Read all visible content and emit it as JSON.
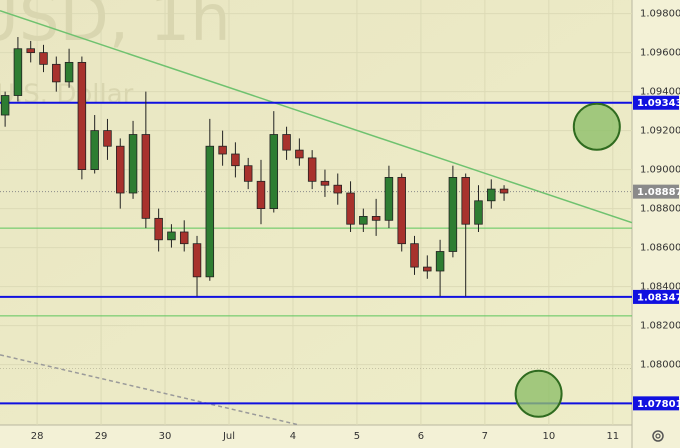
{
  "chart_data": {
    "type": "candlestick",
    "watermark": "USD, 1h",
    "watermark_subtitle": "U.S. Dollar",
    "x": [
      -0.5,
      -0.3,
      -0.1,
      0.1,
      0.3,
      0.5,
      0.7,
      0.9,
      1.1,
      1.3,
      1.5,
      1.7,
      1.9,
      2.1,
      2.3,
      2.5,
      2.7,
      2.9,
      3.1,
      3.3,
      3.5,
      3.7,
      3.9,
      4.1,
      4.3,
      4.5,
      4.7,
      4.9,
      5.1,
      5.3,
      5.5,
      5.7,
      5.9,
      6.1,
      6.3,
      6.5,
      6.7,
      6.9,
      7.1,
      7.3
    ],
    "open": [
      1.0928,
      1.0938,
      1.0962,
      1.096,
      1.0954,
      1.0945,
      1.0955,
      1.09,
      1.092,
      1.0912,
      1.0888,
      1.0918,
      1.0875,
      1.0864,
      1.0868,
      1.0862,
      1.0845,
      1.0912,
      1.0908,
      1.0902,
      1.0894,
      1.088,
      1.0918,
      1.091,
      1.0906,
      1.0894,
      1.0892,
      1.0888,
      1.0872,
      1.0876,
      1.0874,
      1.0896,
      1.0862,
      1.085,
      1.0848,
      1.0858,
      1.0896,
      1.0872,
      1.0884,
      1.089
    ],
    "high": [
      1.094,
      1.0968,
      1.0966,
      1.0964,
      1.0958,
      1.0962,
      1.0958,
      1.0928,
      1.0926,
      1.0916,
      1.0925,
      1.094,
      1.088,
      1.0872,
      1.0874,
      1.0866,
      1.0926,
      1.092,
      1.0914,
      1.0906,
      1.0905,
      1.093,
      1.0922,
      1.0916,
      1.091,
      1.09,
      1.0898,
      1.0894,
      1.088,
      1.0885,
      1.0902,
      1.0898,
      1.0866,
      1.0856,
      1.0864,
      1.0902,
      1.0898,
      1.0892,
      1.0895,
      1.0892
    ],
    "low": [
      1.0922,
      1.0935,
      1.0955,
      1.095,
      1.094,
      1.0942,
      1.0895,
      1.0898,
      1.0905,
      1.088,
      1.0885,
      1.087,
      1.0858,
      1.086,
      1.0858,
      1.0835,
      1.0843,
      1.0902,
      1.0896,
      1.089,
      1.0872,
      1.0878,
      1.0905,
      1.0902,
      1.089,
      1.0886,
      1.0882,
      1.0868,
      1.0868,
      1.0866,
      1.087,
      1.0858,
      1.0846,
      1.0844,
      1.0835,
      1.0855,
      1.0835,
      1.0868,
      1.088,
      1.0884
    ],
    "close": [
      1.0938,
      1.0962,
      1.096,
      1.0954,
      1.0945,
      1.0955,
      1.09,
      1.092,
      1.0912,
      1.0888,
      1.0918,
      1.0875,
      1.0864,
      1.0868,
      1.0862,
      1.0845,
      1.0912,
      1.0908,
      1.0902,
      1.0894,
      1.088,
      1.0918,
      1.091,
      1.0906,
      1.0894,
      1.0892,
      1.0888,
      1.0872,
      1.0876,
      1.0874,
      1.0896,
      1.0862,
      1.085,
      1.0848,
      1.0858,
      1.0896,
      1.0872,
      1.0884,
      1.089,
      1.0888
    ],
    "up_color": "#2e7d32",
    "down_color": "#a8322d",
    "xlim": [
      -0.58,
      9.3
    ],
    "ylim": [
      1.0769,
      1.0987
    ],
    "xticks": [
      {
        "value": 0,
        "label": "28"
      },
      {
        "value": 1,
        "label": "29"
      },
      {
        "value": 2,
        "label": "30"
      },
      {
        "value": 3,
        "label": "Jul"
      },
      {
        "value": 4,
        "label": "4"
      },
      {
        "value": 5,
        "label": "5"
      },
      {
        "value": 6,
        "label": "6"
      },
      {
        "value": 7,
        "label": "7"
      },
      {
        "value": 8,
        "label": "10"
      },
      {
        "value": 9,
        "label": "11"
      }
    ],
    "yticks": [
      {
        "value": 1.098,
        "label": "1.09800"
      },
      {
        "value": 1.096,
        "label": "1.09600"
      },
      {
        "value": 1.094,
        "label": "1.09400"
      },
      {
        "value": 1.092,
        "label": "1.09200"
      },
      {
        "value": 1.09,
        "label": "1.09000"
      },
      {
        "value": 1.088,
        "label": "1.08800"
      },
      {
        "value": 1.086,
        "label": "1.08600"
      },
      {
        "value": 1.084,
        "label": "1.08400"
      },
      {
        "value": 1.082,
        "label": "1.08200"
      },
      {
        "value": 1.08,
        "label": "1.08000"
      },
      {
        "value": 1.078,
        "label": "1.07800"
      }
    ],
    "grid": true,
    "levels": [
      1.09343,
      1.08347,
      1.07801
    ],
    "level_color": "#1010e0",
    "last_price": 1.08887,
    "last_price_color": "#8a8a8a",
    "support_lines": [
      1.087,
      1.0825
    ],
    "support_color": "#5cc65c",
    "dotted_lines": [
      1.0798
    ],
    "trend_lines": [
      {
        "x": [
          -0.58,
          9.3
        ],
        "y": [
          1.09815,
          1.08728
        ],
        "color": "#6fc26f",
        "dashed": false
      },
      {
        "x": [
          -0.58,
          4.1
        ],
        "y": [
          1.0805,
          1.0769
        ],
        "color": "#9a9a9a",
        "dashed": true
      }
    ],
    "circles": [
      {
        "x": 8.75,
        "y": 1.0922
      },
      {
        "x": 7.84,
        "y": 1.0785
      }
    ],
    "circle_color": "#8fbf6a"
  }
}
